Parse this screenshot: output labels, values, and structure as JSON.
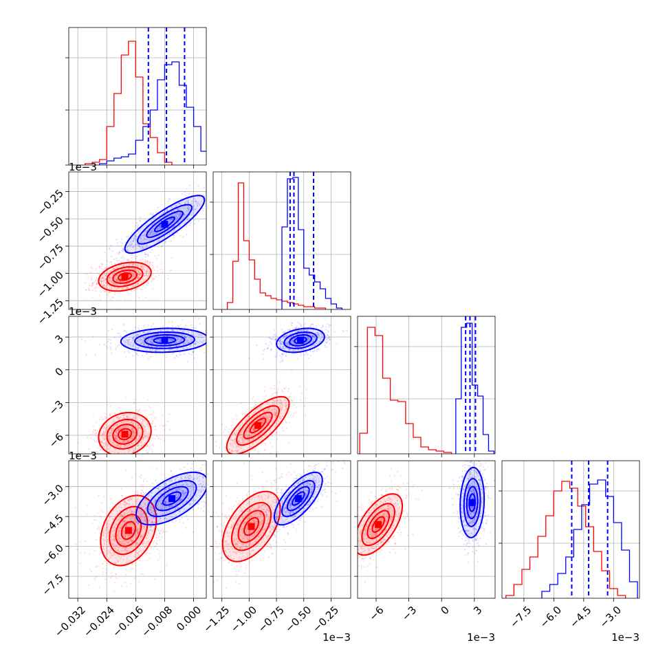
{
  "chart_data": {
    "type": "corner",
    "title": "",
    "colors": {
      "series_a": "#ff0000",
      "series_b": "#0000ff",
      "grid": "#b0b0b0",
      "axes": "#000000"
    },
    "grid": true,
    "parameters": [
      {
        "range": [
          -0.0345,
          0.0035
        ],
        "ticks": [
          -0.032,
          -0.024,
          -0.016,
          -0.008,
          0.0
        ],
        "tick_labels": [
          "−0.032",
          "−0.024",
          "−0.016",
          "−0.008",
          "0.000"
        ],
        "offset_text": ""
      },
      {
        "range": [
          -1.33,
          -0.07
        ],
        "ticks": [
          -1.25,
          -1.0,
          -0.75,
          -0.5,
          -0.25
        ],
        "tick_labels": [
          "−1.25",
          "−1.00",
          "−0.75",
          "−0.50",
          "−0.25"
        ],
        "offset_text": "1e−3"
      },
      {
        "range": [
          -7.7,
          4.9
        ],
        "ticks": [
          -6,
          -3,
          0,
          3
        ],
        "tick_labels": [
          "−6",
          "−3",
          "0",
          "3"
        ],
        "offset_text": "1e−3"
      },
      {
        "range": [
          -8.6,
          -1.7
        ],
        "ticks": [
          -7.5,
          -6.0,
          -4.5,
          -3.0
        ],
        "tick_labels": [
          "−7.5",
          "−6.0",
          "−4.5",
          "−3.0"
        ],
        "offset_text": "1e−3"
      }
    ],
    "series": [
      {
        "name": "",
        "color": "#ff0000",
        "histograms": [
          {
            "bins": [
              -0.03,
              -0.028,
              -0.026,
              -0.024,
              -0.022,
              -0.02,
              -0.018,
              -0.016,
              -0.014,
              -0.012,
              -0.01,
              -0.008,
              -0.006
            ],
            "counts": [
              0.01,
              0.02,
              0.04,
              0.28,
              0.52,
              0.8,
              0.9,
              0.64,
              0.3,
              0.2,
              0.09,
              0.02
            ]
          },
          {
            "bins": [
              -1.2,
              -1.15,
              -1.1,
              -1.05,
              -1.0,
              -0.95,
              -0.9,
              -0.85,
              -0.8,
              -0.75,
              -0.7,
              -0.65,
              -0.6,
              -0.55,
              -0.5,
              -0.45,
              -0.4,
              -0.35,
              -0.3
            ],
            "counts": [
              0.05,
              0.35,
              0.92,
              0.5,
              0.36,
              0.22,
              0.12,
              0.1,
              0.08,
              0.07,
              0.06,
              0.05,
              0.04,
              0.03,
              0.02,
              0.02,
              0.01,
              0.01
            ]
          },
          {
            "bins": [
              -7.5,
              -6.8,
              -6.1,
              -5.4,
              -4.7,
              -4.0,
              -3.3,
              -2.6,
              -1.9,
              -1.2,
              -0.5,
              0.2,
              0.9
            ],
            "counts": [
              0.15,
              0.92,
              0.86,
              0.55,
              0.39,
              0.38,
              0.22,
              0.12,
              0.05,
              0.03,
              0.02,
              0.01
            ]
          },
          {
            "bins": [
              -8.4,
              -8.0,
              -7.6,
              -7.2,
              -6.8,
              -6.4,
              -6.0,
              -5.6,
              -5.2,
              -4.8,
              -4.4,
              -4.0,
              -3.6,
              -3.2,
              -2.8,
              -2.4
            ],
            "counts": [
              0.02,
              0.1,
              0.21,
              0.3,
              0.45,
              0.6,
              0.78,
              0.85,
              0.8,
              0.67,
              0.52,
              0.34,
              0.2,
              0.07,
              0.02
            ]
          }
        ],
        "scatter_2d": [
          {
            "pair": [
              1,
              0
            ],
            "center": [
              -0.019,
              -1.03
            ],
            "spread": [
              0.0033,
              0.06
            ],
            "corr": 0.3
          },
          {
            "pair": [
              2,
              0
            ],
            "center": [
              -0.019,
              -5.9
            ],
            "spread": [
              0.0033,
              0.9
            ],
            "corr": 0.15
          },
          {
            "pair": [
              2,
              1
            ],
            "center": [
              -0.92,
              -5.1
            ],
            "spread": [
              0.13,
              1.2
            ],
            "corr": 0.75
          },
          {
            "pair": [
              3,
              0
            ],
            "center": [
              -0.018,
              -5.2
            ],
            "spread": [
              0.0035,
              0.8
            ],
            "corr": 0.3
          },
          {
            "pair": [
              3,
              1
            ],
            "center": [
              -0.98,
              -5.0
            ],
            "spread": [
              0.12,
              0.8
            ],
            "corr": 0.5
          },
          {
            "pair": [
              3,
              2
            ],
            "center": [
              -5.8,
              -4.9
            ],
            "spread": [
              1.0,
              0.7
            ],
            "corr": 0.6
          }
        ]
      },
      {
        "name": "",
        "color": "#0000ff",
        "quantiles": [
          [
            -0.0125,
            -0.0075,
            -0.0025
          ],
          [
            -0.625,
            -0.59,
            -0.41
          ],
          [
            2.2,
            2.6,
            3.1
          ],
          [
            -5.1,
            -4.25,
            -3.3
          ]
        ],
        "histograms": [
          {
            "bins": [
              -0.026,
              -0.024,
              -0.022,
              -0.02,
              -0.018,
              -0.016,
              -0.014,
              -0.012,
              -0.01,
              -0.008,
              -0.006,
              -0.004,
              -0.002,
              0.0,
              0.002,
              0.004
            ],
            "counts": [
              0.01,
              0.03,
              0.05,
              0.06,
              0.08,
              0.18,
              0.28,
              0.4,
              0.62,
              0.73,
              0.75,
              0.58,
              0.42,
              0.28,
              0.1
            ]
          },
          {
            "bins": [
              -0.7,
              -0.65,
              -0.6,
              -0.55,
              -0.5,
              -0.45,
              -0.4,
              -0.35,
              -0.3,
              -0.25,
              -0.2,
              -0.15
            ],
            "counts": [
              0.6,
              0.95,
              0.96,
              0.58,
              0.3,
              0.25,
              0.2,
              0.15,
              0.08,
              0.04,
              0.01
            ]
          },
          {
            "bins": [
              1.3,
              1.8,
              2.3,
              2.8,
              3.3,
              3.8,
              4.3,
              4.8
            ],
            "counts": [
              0.4,
              0.92,
              0.95,
              0.5,
              0.42,
              0.14,
              0.02
            ]
          },
          {
            "bins": [
              -6.6,
              -6.2,
              -5.8,
              -5.4,
              -5.0,
              -4.6,
              -4.2,
              -3.8,
              -3.4,
              -3.0,
              -2.6,
              -2.2,
              -1.8
            ],
            "counts": [
              0.05,
              0.1,
              0.18,
              0.3,
              0.5,
              0.68,
              0.83,
              0.86,
              0.74,
              0.55,
              0.35,
              0.12
            ]
          }
        ],
        "scatter_2d": [
          {
            "pair": [
              1,
              0
            ],
            "center": [
              -0.008,
              -0.55
            ],
            "spread": [
              0.005,
              0.12
            ],
            "corr": 0.85
          },
          {
            "pair": [
              2,
              0
            ],
            "center": [
              -0.008,
              2.7
            ],
            "spread": [
              0.0055,
              0.5
            ],
            "corr": 0.1
          },
          {
            "pair": [
              2,
              1
            ],
            "center": [
              -0.53,
              2.7
            ],
            "spread": [
              0.1,
              0.5
            ],
            "corr": 0.3
          },
          {
            "pair": [
              3,
              0
            ],
            "center": [
              -0.006,
              -3.6
            ],
            "spread": [
              0.0045,
              0.6
            ],
            "corr": 0.6
          },
          {
            "pair": [
              3,
              1
            ],
            "center": [
              -0.55,
              -3.6
            ],
            "spread": [
              0.1,
              0.6
            ],
            "corr": 0.7
          },
          {
            "pair": [
              3,
              2
            ],
            "center": [
              2.8,
              -3.8
            ],
            "spread": [
              0.5,
              0.8
            ],
            "corr": 0.1
          }
        ]
      }
    ]
  }
}
